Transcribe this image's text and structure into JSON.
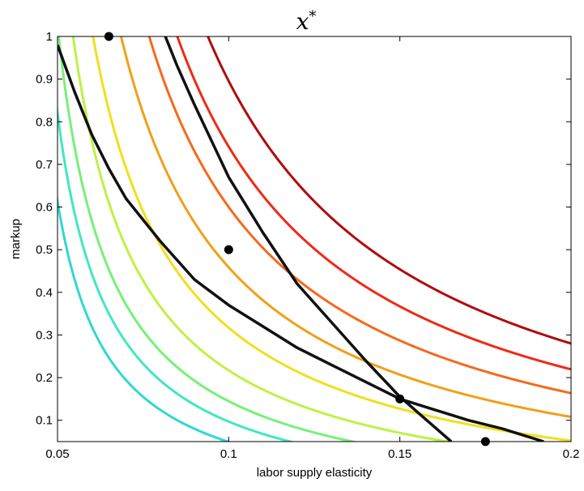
{
  "chart_data": {
    "type": "line",
    "title": {
      "base": "x",
      "sup": "*"
    },
    "xlabel": "labor supply elasticity",
    "ylabel": "markup",
    "xlim": [
      0.05,
      0.2
    ],
    "ylim": [
      0.05,
      1.0
    ],
    "x_ticks": [
      "0.05",
      "0.1",
      "0.15",
      "0.2"
    ],
    "y_ticks": [
      "0.1",
      "0.2",
      "0.3",
      "0.4",
      "0.5",
      "0.6",
      "0.7",
      "0.8",
      "0.9",
      "1"
    ],
    "grid": false,
    "contour_levels": [
      {
        "k": 0.055,
        "color": "#30d8d0"
      },
      {
        "k": 0.0705,
        "color": "#40e8c0"
      },
      {
        "k": 0.086,
        "color": "#78f078"
      },
      {
        "k": 0.1095,
        "color": "#bdf243"
      },
      {
        "k": 0.142,
        "color": "#f0e01c"
      },
      {
        "k": 0.188,
        "color": "#f0a018"
      },
      {
        "k": 0.234,
        "color": "#f46a1c"
      },
      {
        "k": 0.28,
        "color": "#ee2a18"
      },
      {
        "k": 0.33,
        "color": "#b00c0c"
      }
    ],
    "black_curves": [
      {
        "name": "",
        "x": [
          0.05,
          0.055,
          0.06,
          0.065,
          0.07,
          0.08,
          0.09,
          0.1,
          0.11,
          0.12,
          0.13,
          0.14,
          0.15,
          0.16,
          0.17,
          0.18,
          0.19,
          0.192
        ],
        "y": [
          0.98,
          0.87,
          0.77,
          0.69,
          0.62,
          0.52,
          0.43,
          0.37,
          0.32,
          0.27,
          0.23,
          0.19,
          0.15,
          0.125,
          0.1,
          0.08,
          0.055,
          0.05
        ]
      },
      {
        "name": "",
        "x": [
          0.0815,
          0.085,
          0.09,
          0.1,
          0.11,
          0.12,
          0.13,
          0.14,
          0.15,
          0.16,
          0.165
        ],
        "y": [
          1.0,
          0.93,
          0.84,
          0.67,
          0.54,
          0.42,
          0.33,
          0.24,
          0.155,
          0.085,
          0.05
        ]
      }
    ],
    "points": [
      {
        "x": 0.065,
        "y": 1.0
      },
      {
        "x": 0.1,
        "y": 0.5
      },
      {
        "x": 0.15,
        "y": 0.15
      },
      {
        "x": 0.175,
        "y": 0.05
      }
    ]
  }
}
